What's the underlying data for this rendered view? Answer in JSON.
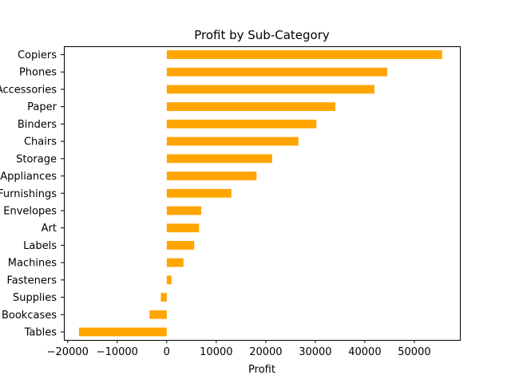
{
  "chart_data": {
    "type": "bar",
    "orientation": "horizontal",
    "title": "Profit by Sub-Category",
    "xlabel": "Profit",
    "ylabel": "",
    "bar_color": "#ffa500",
    "categories": [
      "Copiers",
      "Phones",
      "Accessories",
      "Paper",
      "Binders",
      "Chairs",
      "Storage",
      "Appliances",
      "Furnishings",
      "Envelopes",
      "Art",
      "Labels",
      "Machines",
      "Fasteners",
      "Supplies",
      "Bookcases",
      "Tables"
    ],
    "values": [
      55618,
      44516,
      41937,
      34054,
      30222,
      26590,
      21279,
      18138,
      13059,
      6964,
      6528,
      5546,
      3385,
      950,
      -1189,
      -3473,
      -17725
    ],
    "xlim": [
      -20770,
      59200
    ],
    "xticks": [
      -20000,
      -10000,
      0,
      10000,
      20000,
      30000,
      40000,
      50000
    ],
    "xtick_labels": [
      "−20000",
      "−10000",
      "0",
      "10000",
      "20000",
      "30000",
      "40000",
      "50000"
    ],
    "grid": false,
    "legend": "none"
  }
}
